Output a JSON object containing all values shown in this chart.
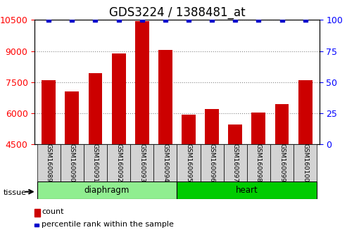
{
  "title": "GDS3224 / 1388481_at",
  "samples": [
    "GSM160089",
    "GSM160090",
    "GSM160091",
    "GSM160092",
    "GSM160093",
    "GSM160094",
    "GSM160095",
    "GSM160096",
    "GSM160097",
    "GSM160098",
    "GSM160099",
    "GSM160100"
  ],
  "counts": [
    7600,
    7050,
    7950,
    8900,
    10450,
    9050,
    5950,
    6200,
    5450,
    6050,
    6450,
    7600
  ],
  "percentiles": [
    100,
    100,
    100,
    100,
    100,
    100,
    100,
    100,
    100,
    100,
    100,
    100
  ],
  "percentile_y": [
    10400,
    10400,
    10400,
    10400,
    10400,
    10400,
    10400,
    10400,
    10400,
    10400,
    10400,
    10400
  ],
  "tissue_groups": [
    {
      "label": "diaphragm",
      "start": 0,
      "end": 6,
      "color": "#90EE90"
    },
    {
      "label": "heart",
      "start": 6,
      "end": 12,
      "color": "#00CC00"
    }
  ],
  "ylim_left": [
    4500,
    10500
  ],
  "ylim_right": [
    0,
    100
  ],
  "yticks_left": [
    4500,
    6000,
    7500,
    9000,
    10500
  ],
  "yticks_right": [
    0,
    25,
    50,
    75,
    100
  ],
  "bar_color": "#CC0000",
  "percentile_color": "#0000CC",
  "bar_width": 0.6,
  "grid_color": "#888888",
  "bg_color": "#FFFFFF",
  "plot_bg": "#FFFFFF",
  "label_area_color": "#D3D3D3",
  "legend_count_label": "count",
  "legend_percentile_label": "percentile rank within the sample",
  "tissue_label": "tissue",
  "title_fontsize": 12,
  "tick_fontsize": 9,
  "label_fontsize": 9
}
